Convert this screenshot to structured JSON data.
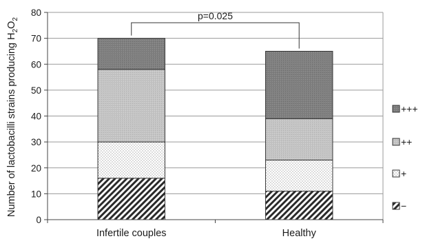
{
  "chart_data": {
    "type": "bar",
    "stacked": true,
    "categories": [
      "Infertile couples",
      "Healthy"
    ],
    "series": [
      {
        "name": "−",
        "values": [
          16,
          11
        ],
        "pattern": "diagonal-hatch",
        "color": "#ffffff"
      },
      {
        "name": "+",
        "values": [
          14,
          12
        ],
        "pattern": "dots",
        "color": "#f2f2f2"
      },
      {
        "name": "++",
        "values": [
          28,
          16
        ],
        "pattern": "light-gray",
        "color": "#c4c4c4"
      },
      {
        "name": "+++",
        "values": [
          12,
          26
        ],
        "pattern": "dark-gray",
        "color": "#7f7f7f"
      }
    ],
    "ylabel": {
      "prefix": "Number of lactobacilli strains producing H",
      "sub1": "2",
      "mid": "O",
      "sub2": "2"
    },
    "ylim": [
      0,
      80
    ],
    "yticks": [
      0,
      10,
      20,
      30,
      40,
      50,
      60,
      70,
      80
    ],
    "grid": true,
    "legend": "right",
    "annotation": {
      "text": "p=0.025",
      "between": [
        "Infertile couples",
        "Healthy"
      ],
      "at_value": 76
    }
  }
}
